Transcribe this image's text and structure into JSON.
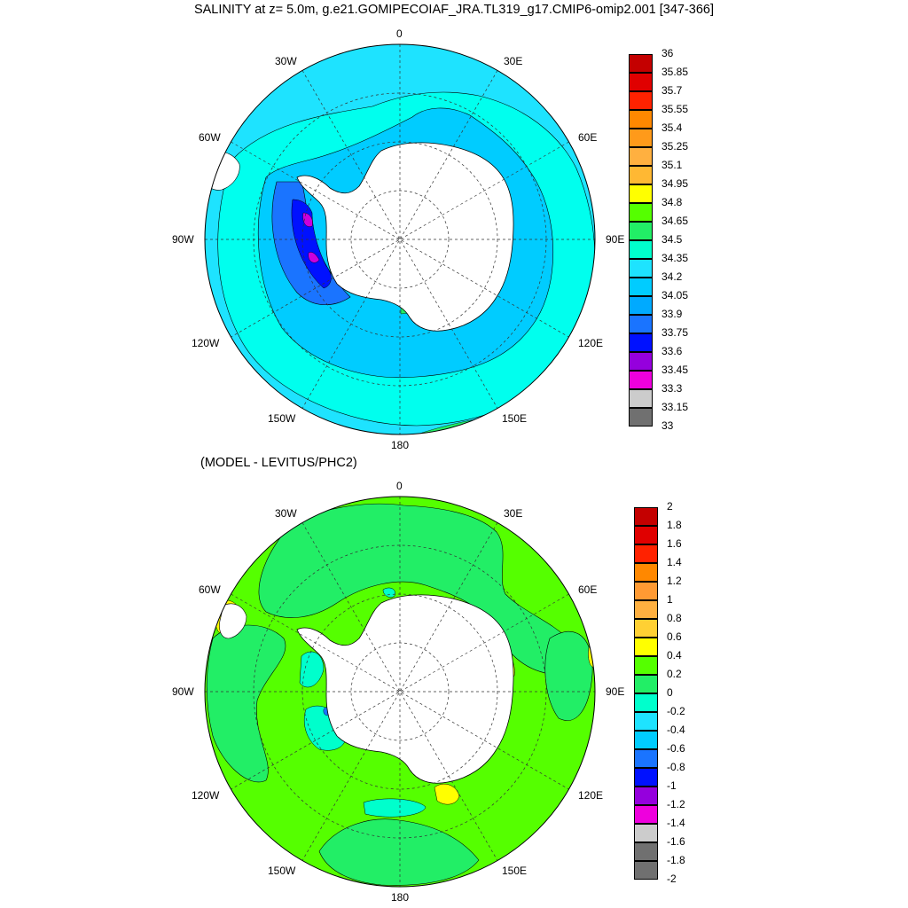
{
  "title": "SALINITY at z=   5.0m, g.e21.GOMIPECOIAF_JRA.TL319_g17.CMIP6-omip2.001 [347-366]",
  "subtitle": "(MODEL - LEVITUS/PHC2)",
  "lon_labels": {
    "n0": "0",
    "w30": "30W",
    "e30": "30E",
    "w60": "60W",
    "e60": "60E",
    "w90": "90W",
    "e90": "90E",
    "w120": "120W",
    "e120": "120E",
    "w150": "150W",
    "e150": "150E",
    "s180": "180"
  },
  "colors": {
    "land": "#ffffff",
    "grid": "#333333",
    "ocean_top": "#1ee3ff",
    "ocean_bottom": "#55ff00"
  },
  "top_colorbar": {
    "labels": [
      "36",
      "35.85",
      "35.7",
      "35.55",
      "35.4",
      "35.25",
      "35.1",
      "34.95",
      "34.8",
      "34.65",
      "34.5",
      "34.35",
      "34.2",
      "34.05",
      "33.9",
      "33.75",
      "33.6",
      "33.45",
      "33.3",
      "33.15",
      "33"
    ],
    "colors": [
      "#c40000",
      "#e00000",
      "#ff2200",
      "#ff8800",
      "#ff9a1a",
      "#ffb040",
      "#ffb833",
      "#ffff00",
      "#55ff00",
      "#22ee66",
      "#00ffcc",
      "#1ee3ff",
      "#00ccff",
      "#00aaff",
      "#1a74ff",
      "#0011ff",
      "#9500dd",
      "#ee00dd",
      "#cccccc",
      "#707070"
    ]
  },
  "bottom_colorbar": {
    "labels": [
      "2",
      "1.8",
      "1.6",
      "1.4",
      "1.2",
      "1",
      "0.8",
      "0.6",
      "0.4",
      "0.2",
      "0",
      "-0.2",
      "-0.4",
      "-0.6",
      "-0.8",
      "-1",
      "-1.2",
      "-1.4",
      "-1.6",
      "-1.8",
      "-2"
    ],
    "colors": [
      "#c40000",
      "#e00000",
      "#ff2200",
      "#ff8800",
      "#ff9a33",
      "#ffb040",
      "#ffd033",
      "#ffff00",
      "#55ff00",
      "#22ee66",
      "#00ffcc",
      "#1ee3ff",
      "#00ccff",
      "#1a74ff",
      "#0011ff",
      "#9500dd",
      "#ee00dd",
      "#cccccc",
      "#707070",
      "#707070"
    ]
  }
}
